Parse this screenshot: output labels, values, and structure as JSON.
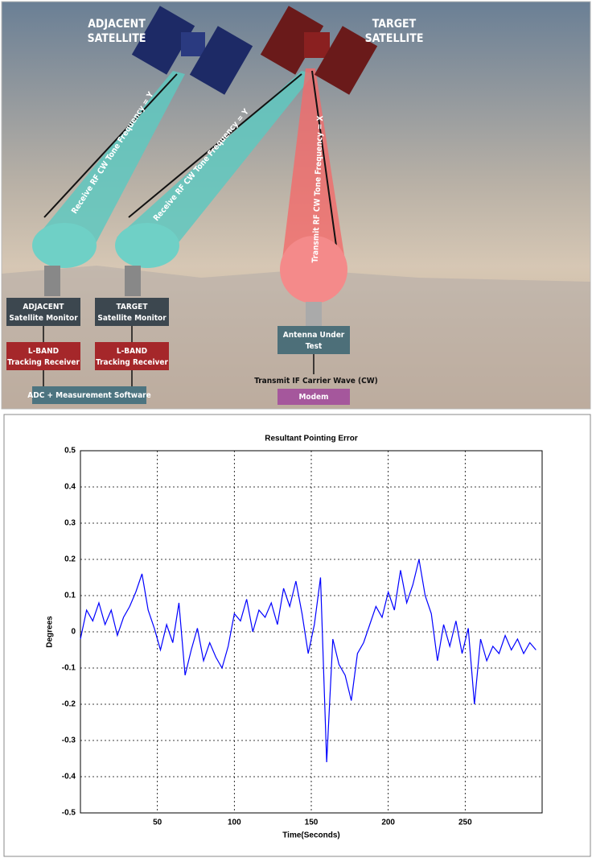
{
  "diagram": {
    "adjacent_satellite": [
      "ADJACENT",
      "SATELLITE"
    ],
    "target_satellite": [
      "TARGET",
      "SATELLITE"
    ],
    "adjacent_beam": "Receive RF CW Tone Frequency = Y",
    "target_beam": "Receive RF CW Tone Frequency = Y",
    "transmit_beam": "Transmit RF CW Tone Frequency = X",
    "adjacent_monitor": [
      "ADJACENT",
      "Satellite Monitor"
    ],
    "target_monitor": [
      "TARGET",
      "Satellite Monitor"
    ],
    "adjacent_receiver": [
      "L-BAND",
      "Tracking Receiver"
    ],
    "target_receiver": [
      "L-BAND",
      "Tracking Receiver"
    ],
    "adc": "ADC + Measurement Software",
    "antenna": [
      "Antenna Under",
      "Test"
    ],
    "transmit_if": "Transmit IF Carrier Wave (CW)",
    "modem": "Modem"
  },
  "chart_data": {
    "type": "line",
    "title": "Resultant Pointing Error",
    "x_label": "Time(Seconds)",
    "y_label": "Degrees",
    "x": [
      0,
      4,
      8,
      12,
      16,
      20,
      24,
      28,
      32,
      36,
      40,
      44,
      48,
      52,
      56,
      60,
      64,
      68,
      72,
      76,
      80,
      84,
      88,
      92,
      96,
      100,
      104,
      108,
      112,
      116,
      120,
      124,
      128,
      132,
      136,
      140,
      144,
      148,
      152,
      156,
      160,
      164,
      168,
      172,
      176,
      180,
      184,
      188,
      192,
      196,
      200,
      204,
      208,
      212,
      216,
      220,
      224,
      228,
      232,
      236,
      240,
      244,
      248,
      252,
      256,
      260,
      264,
      268,
      272,
      276,
      280,
      284,
      288,
      292,
      296
    ],
    "values": [
      -0.02,
      0.06,
      0.03,
      0.08,
      0.02,
      0.06,
      -0.01,
      0.04,
      0.07,
      0.11,
      0.16,
      0.06,
      0.01,
      -0.05,
      0.02,
      -0.03,
      0.08,
      -0.12,
      -0.05,
      0.01,
      -0.08,
      -0.03,
      -0.07,
      -0.1,
      -0.04,
      0.05,
      0.03,
      0.09,
      0.0,
      0.06,
      0.04,
      0.08,
      0.02,
      0.12,
      0.07,
      0.14,
      0.05,
      -0.06,
      0.02,
      0.15,
      -0.36,
      -0.02,
      -0.09,
      -0.12,
      -0.19,
      -0.06,
      -0.03,
      0.02,
      0.07,
      0.04,
      0.11,
      0.06,
      0.17,
      0.08,
      0.13,
      0.2,
      0.1,
      0.05,
      -0.08,
      0.02,
      -0.04,
      0.03,
      -0.06,
      0.01,
      -0.2,
      -0.02,
      -0.08,
      -0.04,
      -0.06,
      -0.01,
      -0.05,
      -0.02,
      -0.06,
      -0.03,
      -0.05
    ],
    "color": "#0000ff",
    "xlim": [
      0,
      300
    ],
    "xticks": [
      50,
      100,
      150,
      200,
      250
    ],
    "ylim": [
      -0.5,
      0.5
    ],
    "yticks": [
      -0.5,
      -0.4,
      -0.3,
      -0.2,
      -0.1,
      0,
      0.1,
      0.2,
      0.3,
      0.4,
      0.5
    ],
    "grid": true
  }
}
